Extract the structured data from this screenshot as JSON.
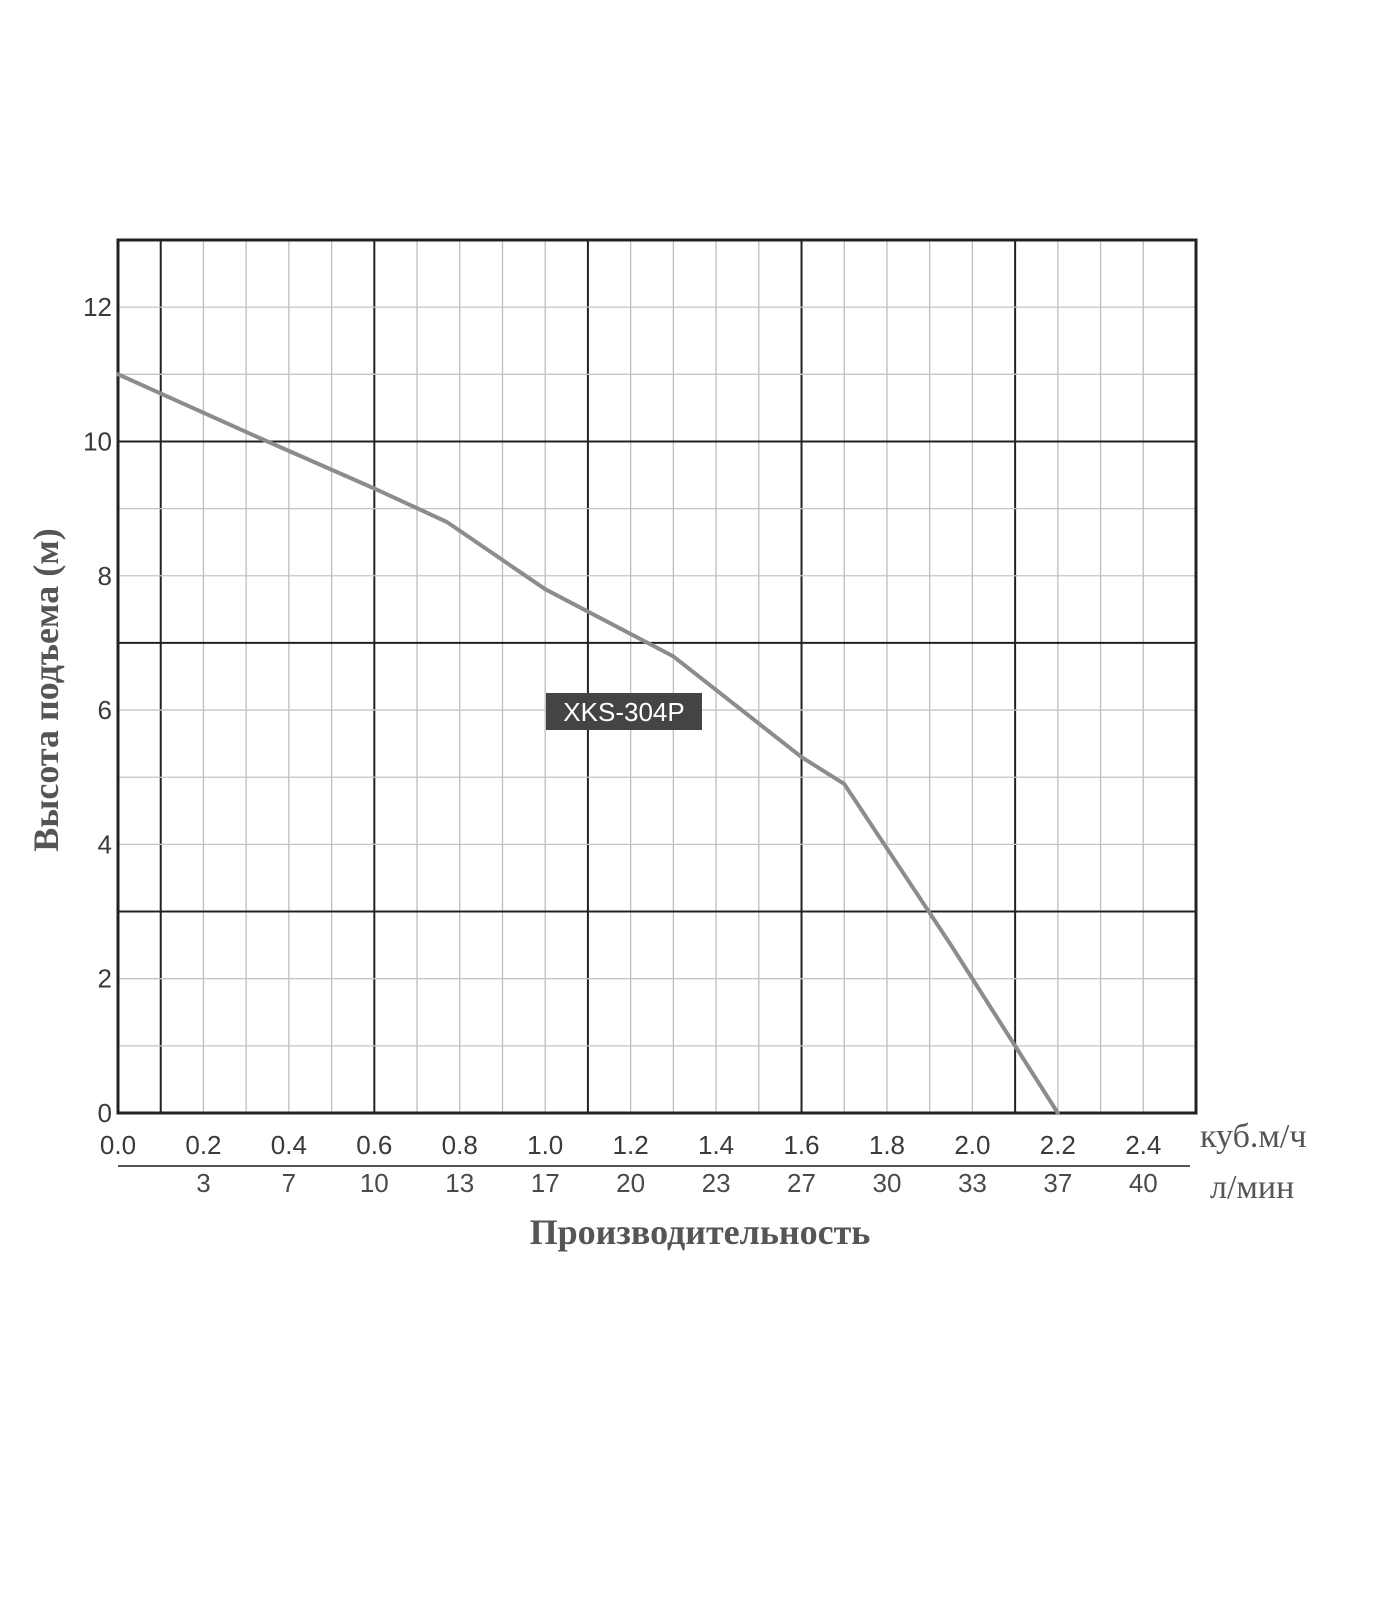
{
  "chart_data": {
    "type": "line",
    "xlabel": "Производительность",
    "ylabel": "Высота подъема (м)",
    "x_unit": "куб.м/ч",
    "x2_unit": "л/мин",
    "xlim": [
      0.0,
      2.5
    ],
    "ylim": [
      0,
      13
    ],
    "x_ticks": [
      "0.0",
      "0.2",
      "0.4",
      "0.6",
      "0.8",
      "1.0",
      "1.2",
      "1.4",
      "1.6",
      "1.8",
      "2.0",
      "2.2",
      "2.4"
    ],
    "x2_ticks": [
      "3",
      "7",
      "10",
      "13",
      "17",
      "20",
      "23",
      "27",
      "30",
      "33",
      "37",
      "40"
    ],
    "y_ticks": [
      "0",
      "2",
      "4",
      "6",
      "8",
      "10",
      "12"
    ],
    "grid": true,
    "series": [
      {
        "name": "XKS-304P",
        "color": "#8c8c8c",
        "x": [
          0.0,
          0.35,
          0.6,
          0.77,
          1.0,
          1.3,
          1.6,
          1.7,
          1.95,
          2.2
        ],
        "y": [
          11.0,
          10.0,
          9.3,
          8.8,
          7.8,
          6.8,
          5.3,
          4.9,
          2.5,
          0.0
        ]
      }
    ]
  }
}
